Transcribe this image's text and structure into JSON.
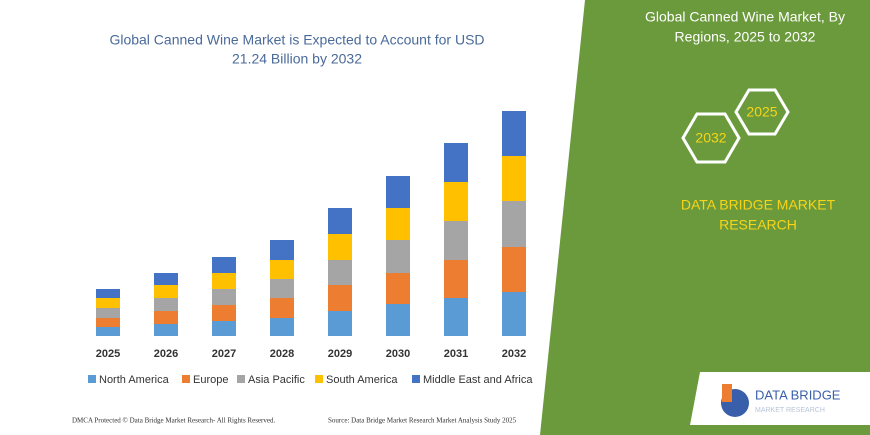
{
  "chart_data": {
    "type": "bar",
    "stacked": true,
    "title": [
      "Global Canned Wine Market is Expected to Account for USD",
      "21.24 Billion by 2032"
    ],
    "categories": [
      "2025",
      "2026",
      "2027",
      "2028",
      "2029",
      "2030",
      "2031",
      "2032"
    ],
    "series": [
      {
        "name": "North America",
        "color": "#5b9bd5",
        "values": [
          9,
          12,
          15,
          18,
          25,
          32,
          38,
          44
        ]
      },
      {
        "name": "Europe",
        "color": "#ed7d31",
        "values": [
          9,
          13,
          16,
          20,
          26,
          31,
          38,
          45
        ]
      },
      {
        "name": "Asia Pacific",
        "color": "#a5a5a5",
        "values": [
          10,
          13,
          16,
          19,
          25,
          33,
          39,
          46
        ]
      },
      {
        "name": "South America",
        "color": "#ffc000",
        "values": [
          10,
          13,
          16,
          19,
          26,
          32,
          39,
          45
        ]
      },
      {
        "name": "Middle East and Africa",
        "color": "#4472c4",
        "values": [
          9,
          12,
          16,
          20,
          26,
          32,
          39,
          45
        ]
      }
    ],
    "ylim": [
      0,
      225
    ]
  },
  "panel": {
    "title": [
      "Global Canned Wine Market, By",
      "Regions, 2025 to 2032"
    ],
    "hexagons": [
      "2032",
      "2025"
    ],
    "brand": [
      "DATA BRIDGE MARKET",
      "RESEARCH"
    ]
  },
  "footer": {
    "left": "DMCA Protected © Data Bridge Market Research-  All Rights Reserved.",
    "right": "Source: Data Bridge Market Research  Market Analysis Study 2025"
  },
  "logo": {
    "name": "DATA BRIDGE",
    "sub": "MARKET RESEARCH"
  }
}
